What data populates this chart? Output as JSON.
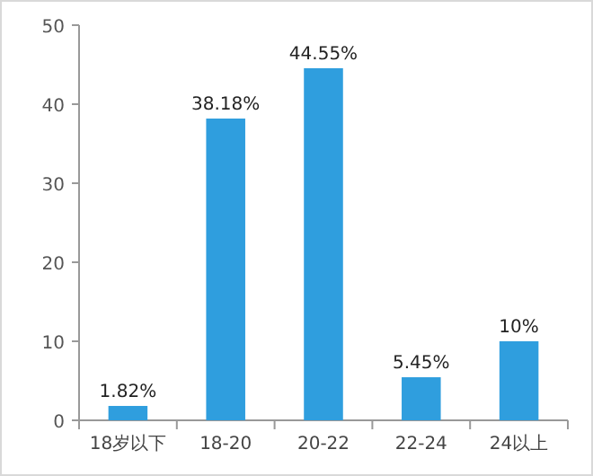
{
  "chart_data": {
    "type": "bar",
    "categories": [
      "18岁以下",
      "18-20",
      "20-22",
      "22-24",
      "24以上"
    ],
    "values": [
      1.82,
      38.18,
      44.55,
      5.45,
      10
    ],
    "value_labels": [
      "1.82%",
      "38.18%",
      "44.55%",
      "5.45%",
      "10%"
    ],
    "color": "#2f9ede",
    "ylim": [
      0,
      50
    ],
    "yticks": [
      0,
      10,
      20,
      30,
      40,
      50
    ],
    "grid": false
  }
}
